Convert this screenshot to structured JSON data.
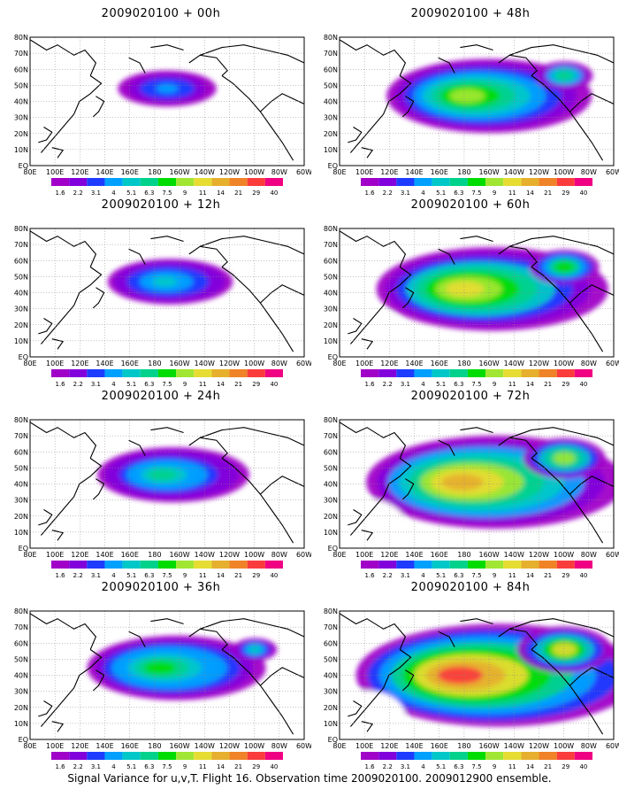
{
  "panels": [
    {
      "title": "2009020100 + 00h",
      "lead": 0
    },
    {
      "title": "2009020100 + 48h",
      "lead": 48
    },
    {
      "title": "2009020100 + 12h",
      "lead": 12
    },
    {
      "title": "2009020100 + 60h",
      "lead": 60
    },
    {
      "title": "2009020100 + 24h",
      "lead": 24
    },
    {
      "title": "2009020100 + 72h",
      "lead": 72
    },
    {
      "title": "2009020100 + 36h",
      "lead": 36
    },
    {
      "title": "2009020100 + 84h",
      "lead": 84
    }
  ],
  "lon_labels": [
    "80E",
    "100E",
    "120E",
    "140E",
    "160E",
    "180",
    "160W",
    "140W",
    "120W",
    "100W",
    "80W",
    "60W"
  ],
  "lat_labels": [
    "EQ",
    "10N",
    "20N",
    "30N",
    "40N",
    "50N",
    "60N",
    "70N",
    "80N"
  ],
  "colorbar": {
    "levels": [
      "1.6",
      "2.2",
      "3.1",
      "4",
      "5.1",
      "6.3",
      "7.5",
      "9",
      "11",
      "14",
      "21",
      "29",
      "40"
    ],
    "colors": [
      "#a000c8",
      "#8200dc",
      "#1e3cff",
      "#00a0ff",
      "#00c8c8",
      "#00d28c",
      "#00dc00",
      "#a0e632",
      "#e6dc32",
      "#e6af2d",
      "#f08228",
      "#fa3c3c",
      "#f00082"
    ]
  },
  "footer": "Signal Variance for u,v,T. Flight 16. Observation time 2009020100. 2009012900 ensemble."
}
